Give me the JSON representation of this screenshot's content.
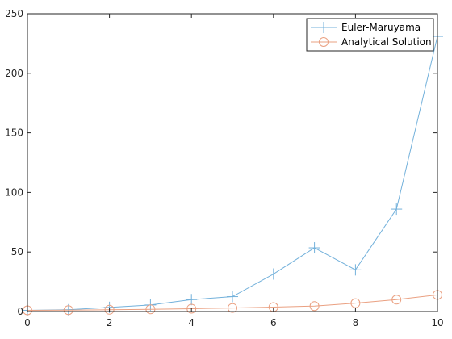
{
  "chart_data": {
    "type": "line",
    "xlim": [
      0,
      10
    ],
    "ylim": [
      0,
      250
    ],
    "xticks": [
      0,
      2,
      4,
      6,
      8,
      10
    ],
    "yticks": [
      0,
      50,
      100,
      150,
      200,
      250
    ],
    "grid": false,
    "legend_placement": "top-right",
    "series": [
      {
        "name": "Euler-Maruyama",
        "marker": "plus",
        "color": "#0072BD",
        "x": [
          0,
          1,
          2,
          3,
          4,
          5,
          6,
          7,
          8,
          9,
          10
        ],
        "y": [
          1,
          1.5,
          3.5,
          5.5,
          10,
          12.5,
          31.5,
          53.5,
          35,
          86,
          231
        ]
      },
      {
        "name": "Analytical Solution",
        "marker": "circle",
        "color": "#D95319",
        "x": [
          0,
          1,
          2,
          3,
          4,
          5,
          6,
          7,
          8,
          9,
          10
        ],
        "y": [
          1,
          1.2,
          1.5,
          1.9,
          2.4,
          3.0,
          3.7,
          4.6,
          7.0,
          10.0,
          14.0
        ]
      }
    ]
  }
}
